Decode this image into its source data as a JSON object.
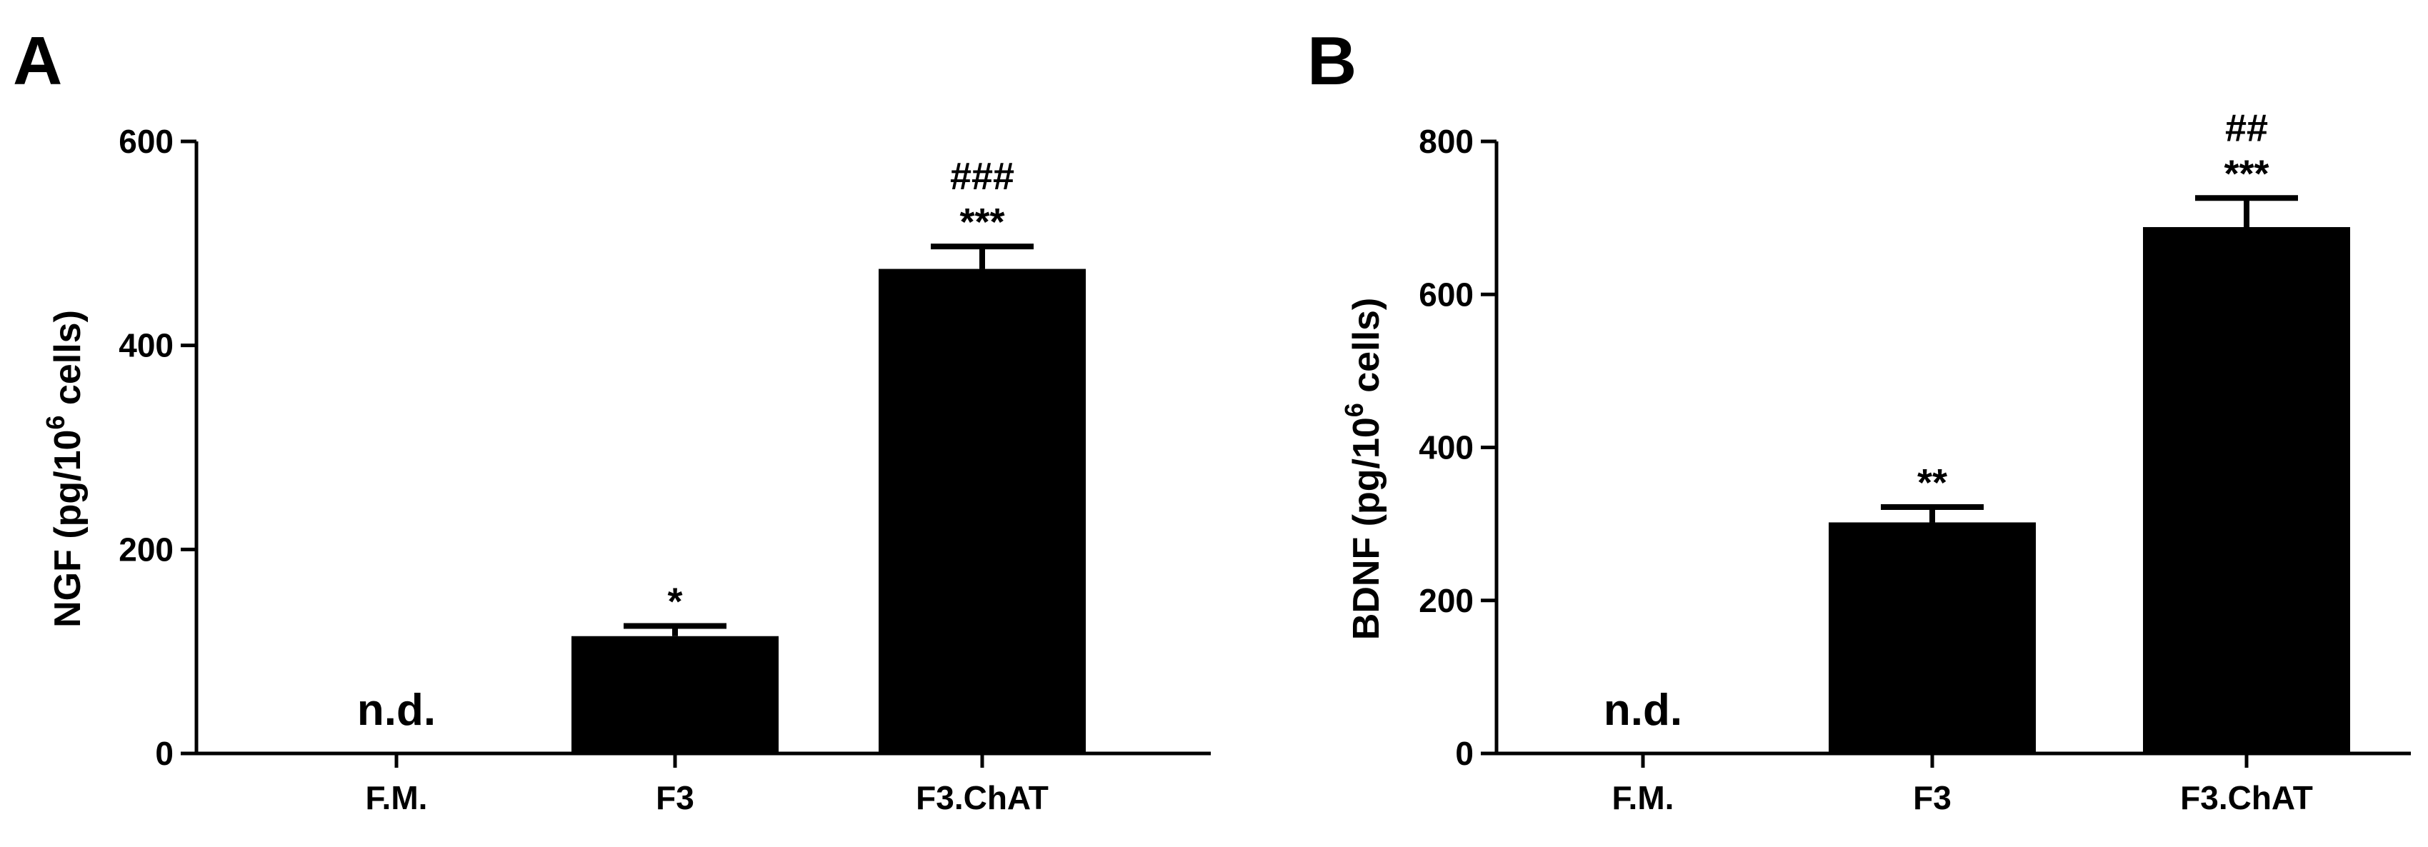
{
  "chart_data": [
    {
      "type": "bar",
      "panel": "A",
      "categories": [
        "F.M.",
        "F3",
        "F3.ChAT"
      ],
      "values": [
        null,
        115,
        475
      ],
      "errors": [
        null,
        10,
        22
      ],
      "value_labels": [
        "n.d.",
        "",
        ""
      ],
      "annotations": [
        [
          "",
          ""
        ],
        [
          "",
          "*"
        ],
        [
          "###",
          "***"
        ]
      ],
      "ylabel": "NGF (pg/10",
      "ylabel_superscript": "6",
      "ylabel_suffix": " cells)",
      "ylim": [
        0,
        600
      ],
      "yticks": [
        0,
        200,
        400,
        600
      ],
      "grid": false,
      "bar_color": "#000000"
    },
    {
      "type": "bar",
      "panel": "B",
      "categories": [
        "F.M.",
        "F3",
        "F3.ChAT"
      ],
      "values": [
        null,
        302,
        688
      ],
      "errors": [
        null,
        20,
        38
      ],
      "value_labels": [
        "n.d.",
        "",
        ""
      ],
      "annotations": [
        [
          "",
          ""
        ],
        [
          "",
          "**"
        ],
        [
          "##",
          "***"
        ]
      ],
      "ylabel": "BDNF (pg/10",
      "ylabel_superscript": "6",
      "ylabel_suffix": " cells)",
      "ylim": [
        0,
        800
      ],
      "yticks": [
        0,
        200,
        400,
        600,
        800
      ],
      "grid": false,
      "bar_color": "#000000"
    }
  ]
}
